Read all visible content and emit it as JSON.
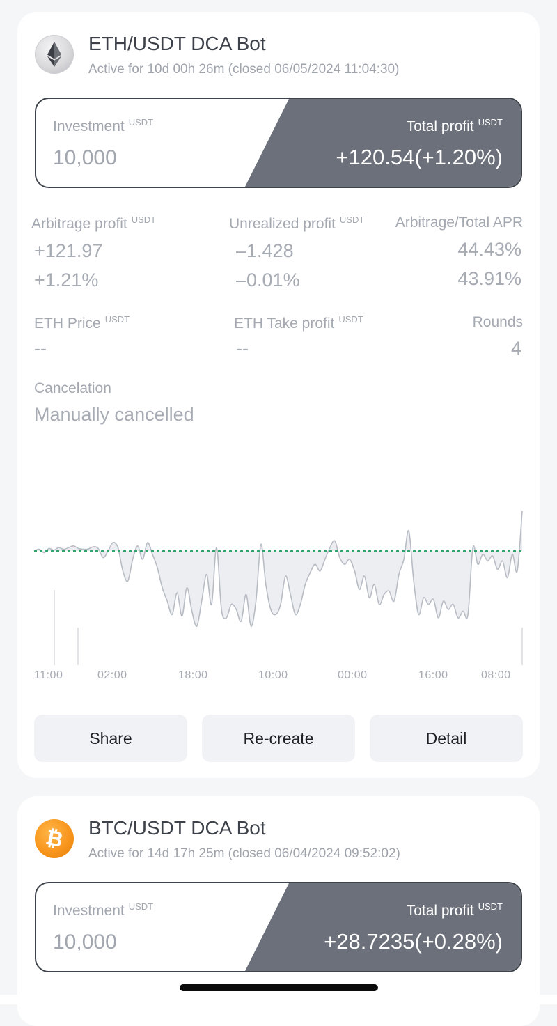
{
  "bots": [
    {
      "title": "ETH/USDT DCA Bot",
      "subtitle": "Active for 10d 00h 26m (closed 06/05/2024 11:04:30)",
      "coin_icon": "ethereum-icon",
      "investment_label": "Investment",
      "investment_unit": "USDT",
      "investment_value": "10,000",
      "total_profit_label": "Total profit",
      "total_profit_unit": "USDT",
      "total_profit_value": "+120.54(+1.20%)",
      "arbitrage_profit_label": "Arbitrage profit",
      "arbitrage_profit_unit": "USDT",
      "arbitrage_profit_value": "+121.97",
      "arbitrage_profit_pct": "+1.21%",
      "unrealized_profit_label": "Unrealized profit",
      "unrealized_profit_unit": "USDT",
      "unrealized_profit_value": "–1.428",
      "unrealized_profit_pct": "–0.01%",
      "apr_label": "Arbitrage/Total APR",
      "arbitrage_apr": "44.43%",
      "total_apr": "43.91%",
      "price_label": "ETH Price",
      "price_unit": "USDT",
      "price_value": "--",
      "take_profit_label": "ETH Take profit",
      "take_profit_unit": "USDT",
      "take_profit_value": "--",
      "rounds_label": "Rounds",
      "rounds_value": "4",
      "cancel_label": "Cancelation",
      "cancel_value": "Manually cancelled",
      "buttons": {
        "share": "Share",
        "recreate": "Re-create",
        "detail": "Detail"
      }
    },
    {
      "title": "BTC/USDT DCA Bot",
      "subtitle": "Active for 14d 17h 25m (closed 06/04/2024 09:52:02)",
      "coin_icon": "bitcoin-icon",
      "investment_label": "Investment",
      "investment_unit": "USDT",
      "investment_value": "10,000",
      "total_profit_label": "Total profit",
      "total_profit_unit": "USDT",
      "total_profit_value": "+28.7235(+0.28%)"
    }
  ],
  "chart_data": {
    "type": "area",
    "x_ticks": [
      "11:00",
      "02:00",
      "18:00",
      "10:00",
      "00:00",
      "16:00",
      "08:00"
    ],
    "baseline": 0,
    "colors": {
      "line": "#b8bcc4",
      "fill": "#eceef1",
      "baseline": "#2fa56b",
      "volume": "#e2e4e8"
    },
    "values": [
      0,
      0.1,
      -0.1,
      0.15,
      0.05,
      0.2,
      0.1,
      0.2,
      0.3,
      0.15,
      0.1,
      0.12,
      0.25,
      0.15,
      -0.4,
      0,
      0.5,
      0.2,
      -1.2,
      -1.8,
      -0.5,
      0.3,
      -0.5,
      0.5,
      -0.2,
      -1.0,
      -2.2,
      -3.0,
      -3.8,
      -2.5,
      -3.9,
      -2.2,
      -3.6,
      -4.5,
      -3.0,
      -1.4,
      -3.2,
      0.2,
      -3.5,
      -4.0,
      -3.2,
      -3.5,
      -4.2,
      -2.6,
      -4.5,
      -3.0,
      0.4,
      -2.0,
      -3.5,
      -3.8,
      -3.2,
      -1.5,
      -2.6,
      -3.8,
      -3.2,
      -2.0,
      -1.3,
      -0.8,
      -1.2,
      -0.5,
      0.2,
      0.6,
      -0.4,
      -0.8,
      -0.5,
      -1.2,
      -2.3,
      -1.5,
      -2.8,
      -2.0,
      -3.2,
      -2.6,
      -2.4,
      -3.0,
      -1.4,
      -0.5,
      1.2,
      -1.8,
      -3.8,
      -2.8,
      -3.2,
      -2.9,
      -4.0,
      -3.0,
      -3.5,
      -3.2,
      -4.0,
      -3.6,
      -3.8,
      0.2,
      -0.8,
      -0.2,
      -0.6,
      -0.3,
      -1.1,
      -0.6,
      -1.6,
      -0.2,
      -1.2,
      2.4
    ]
  }
}
